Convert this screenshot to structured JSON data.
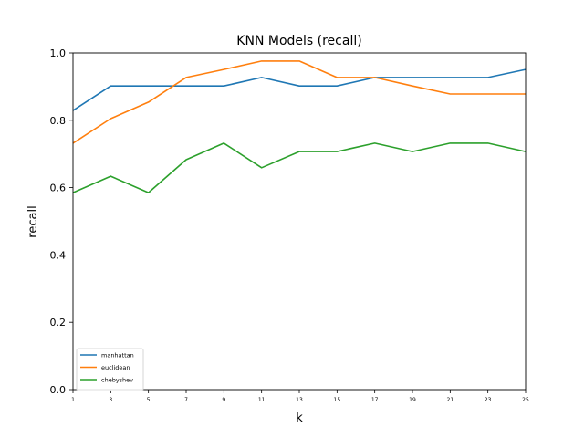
{
  "chart_data": {
    "type": "line",
    "title": "KNN Models (recall)",
    "xlabel": "k",
    "ylabel": "recall",
    "x": [
      1,
      3,
      5,
      7,
      9,
      11,
      13,
      15,
      17,
      19,
      21,
      23,
      25
    ],
    "xlim": [
      1,
      25
    ],
    "ylim": [
      0.0,
      1.0
    ],
    "yticks": [
      "0.0",
      "0.2",
      "0.4",
      "0.6",
      "0.8",
      "1.0"
    ],
    "grid": false,
    "legend_position": "lower-left",
    "series": [
      {
        "name": "manhattan",
        "color": "#1f77b4",
        "values": [
          0.829,
          0.902,
          0.902,
          0.902,
          0.902,
          0.927,
          0.902,
          0.902,
          0.927,
          0.927,
          0.927,
          0.927,
          0.951
        ]
      },
      {
        "name": "euclidean",
        "color": "#ff7f0e",
        "values": [
          0.732,
          0.805,
          0.854,
          0.927,
          0.951,
          0.976,
          0.976,
          0.927,
          0.927,
          0.902,
          0.878,
          0.878,
          0.878
        ]
      },
      {
        "name": "chebyshev",
        "color": "#2ca02c",
        "values": [
          0.585,
          0.634,
          0.585,
          0.683,
          0.732,
          0.659,
          0.707,
          0.707,
          0.732,
          0.707,
          0.732,
          0.732,
          0.707
        ]
      }
    ]
  }
}
